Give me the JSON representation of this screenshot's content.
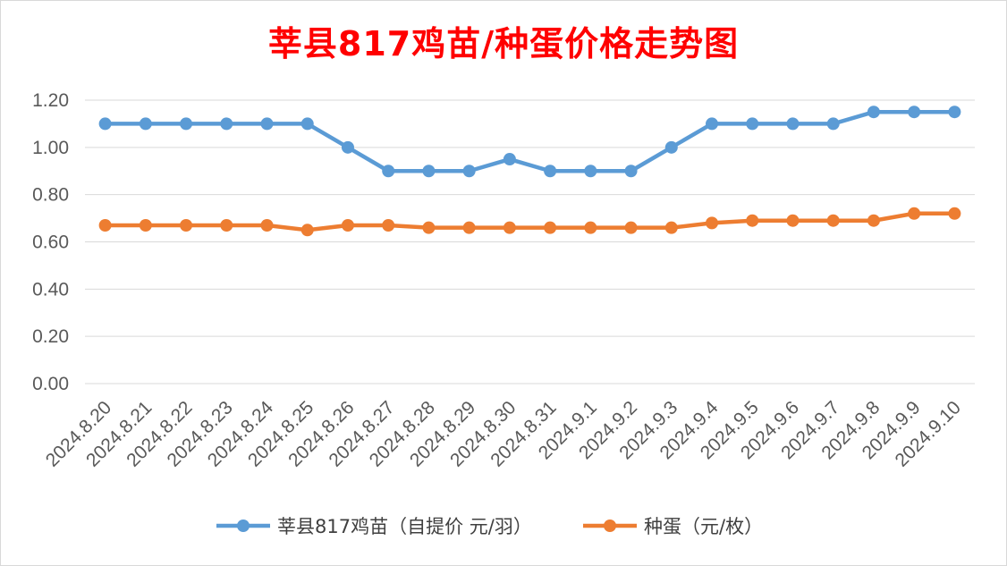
{
  "chart_data": {
    "type": "line",
    "title": "莘县817鸡苗/种蛋价格走势图",
    "categories": [
      "2024.8.20",
      "2024.8.21",
      "2024.8.22",
      "2024.8.23",
      "2024.8.24",
      "2024.8.25",
      "2024.8.26",
      "2024.8.27",
      "2024.8.28",
      "2024.8.29",
      "2024.8.30",
      "2024.8.31",
      "2024.9.1",
      "2024.9.2",
      "2024.9.3",
      "2024.9.4",
      "2024.9.5",
      "2024.9.6",
      "2024.9.7",
      "2024.9.8",
      "2024.9.9",
      "2024.9.10"
    ],
    "series": [
      {
        "name": "莘县817鸡苗（自提价 元/羽）",
        "color": "#5b9bd5",
        "values": [
          1.1,
          1.1,
          1.1,
          1.1,
          1.1,
          1.1,
          1.0,
          0.9,
          0.9,
          0.9,
          0.95,
          0.9,
          0.9,
          0.9,
          1.0,
          1.1,
          1.1,
          1.1,
          1.1,
          1.15,
          1.15,
          1.15
        ]
      },
      {
        "name": "种蛋（元/枚）",
        "color": "#ed7d31",
        "values": [
          0.67,
          0.67,
          0.67,
          0.67,
          0.67,
          0.65,
          0.67,
          0.67,
          0.66,
          0.66,
          0.66,
          0.66,
          0.66,
          0.66,
          0.66,
          0.68,
          0.69,
          0.69,
          0.69,
          0.69,
          0.72,
          0.72
        ]
      }
    ],
    "yticks": [
      "0.00",
      "0.20",
      "0.40",
      "0.60",
      "0.80",
      "1.00",
      "1.20"
    ],
    "ylim": [
      0,
      1.2
    ],
    "grid": true,
    "legend": "bottom"
  }
}
